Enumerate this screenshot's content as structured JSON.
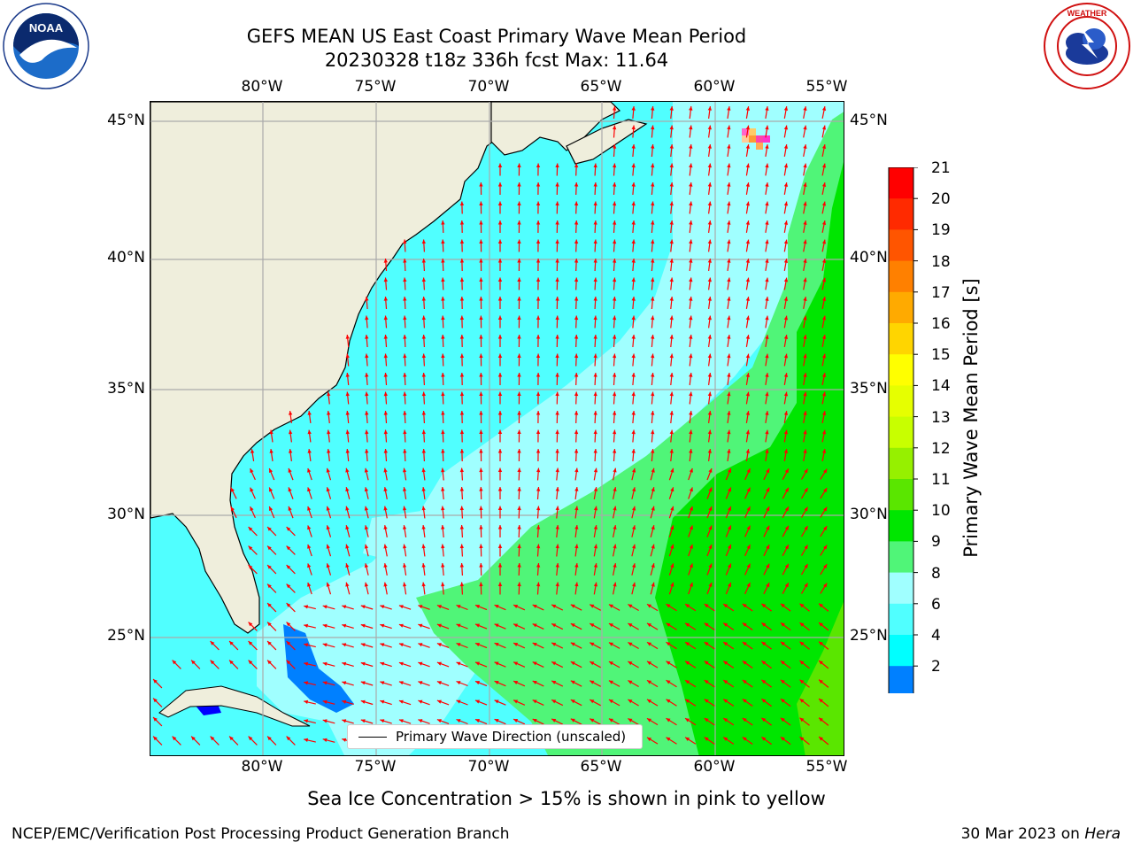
{
  "header": {
    "title_line1": "GEFS MEAN US East Coast Primary Wave Mean Period",
    "title_line2": "20230328 t18z 336h fcst   Max: 11.64"
  },
  "map": {
    "lon_labels": [
      "80°W",
      "75°W",
      "70°W",
      "65°W",
      "60°W",
      "55°W"
    ],
    "lat_labels": [
      "45°N",
      "40°N",
      "35°N",
      "30°N",
      "25°N"
    ],
    "land_color": "#efeedc",
    "arrow_color": "#ff0000"
  },
  "legend": {
    "label": "Primary Wave Direction (unscaled)"
  },
  "colorbar": {
    "label": "Primary Wave Mean Period [s]",
    "ticks": [
      "21",
      "20",
      "19",
      "18",
      "17",
      "16",
      "15",
      "14",
      "13",
      "12",
      "11",
      "10",
      "9",
      "8",
      "6",
      "4",
      "2"
    ],
    "colors": [
      "#ff0000",
      "#ff2a00",
      "#ff5500",
      "#ff8000",
      "#ffaa00",
      "#ffd500",
      "#ffff00",
      "#e6ff00",
      "#c8ff00",
      "#96f000",
      "#5ae600",
      "#00e600",
      "#50f578",
      "#a0ffff",
      "#50ffff",
      "#00ffff",
      "#0080ff"
    ],
    "extend_color": "#0000ff"
  },
  "footer": {
    "sea_ice_note": "Sea Ice Concentration > 15% is shown in pink to yellow",
    "credit": "NCEP/EMC/Verification Post Processing Product Generation Branch",
    "date": "30 Mar 2023 on",
    "host": "Hera"
  },
  "logos": {
    "noaa_text": "NOAA",
    "nws_text": "NATIONAL WEATHER SERVICE"
  }
}
